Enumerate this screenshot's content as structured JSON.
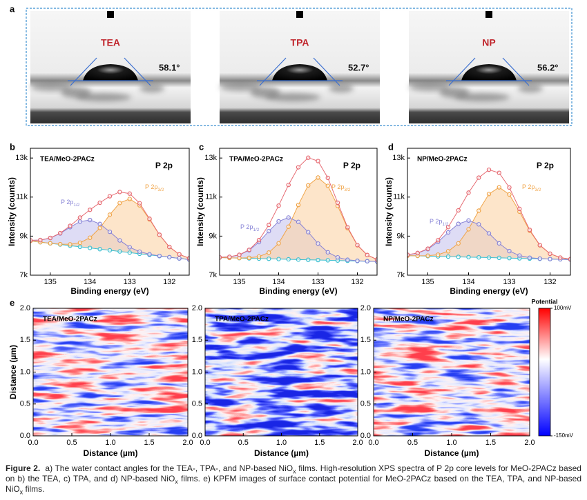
{
  "contact_angle": {
    "label": "a",
    "samples": [
      {
        "name": "TEA",
        "angle": "58.1°"
      },
      {
        "name": "TPA",
        "angle": "52.7°"
      },
      {
        "name": "NP",
        "angle": "56.2°"
      }
    ]
  },
  "chart_data": [
    {
      "type": "line",
      "panel": "b",
      "title": "TEA/MeO-2PACz",
      "annotation": "P 2p",
      "xlabel": "Binding energy (eV)",
      "ylabel": "Intensity (counts)",
      "x": [
        135.5,
        135.25,
        135,
        134.75,
        134.5,
        134.25,
        134,
        133.75,
        133.5,
        133.25,
        133,
        132.75,
        132.5,
        132.25,
        132,
        131.75,
        131.5
      ],
      "xlim": [
        135.5,
        131.5
      ],
      "xticks": [
        135,
        134,
        133,
        132
      ],
      "ylim": [
        7000,
        13500
      ],
      "yticks": [
        {
          "value": 7000,
          "label": "7k"
        },
        {
          "value": 9000,
          "label": "9k"
        },
        {
          "value": 11000,
          "label": "11k"
        },
        {
          "value": 13000,
          "label": "13k"
        }
      ],
      "series": [
        {
          "color": "#e66a72",
          "values": [
            8785,
            8799,
            8908,
            9154,
            9526,
            9951,
            10349,
            10710,
            11043,
            11262,
            11179,
            10686,
            9893,
            9073,
            8446,
            8067,
            7867
          ]
        },
        {
          "name": "P 2p",
          "sub": "1/2",
          "color": "#8783d6",
          "fill": "#c8c4ee",
          "values": [
            8785,
            8799,
            8904,
            9137,
            9459,
            9743,
            9824,
            9624,
            9222,
            8781,
            8429,
            8205,
            8072,
            7987,
            7921,
            7859,
            7800
          ]
        },
        {
          "name": "P 2p",
          "sub": "3/2",
          "color": "#f0a448",
          "fill": "#fbd3a6",
          "values": [
            8750,
            8691,
            8635,
            8589,
            8579,
            8661,
            8919,
            9420,
            10096,
            10697,
            10906,
            10578,
            9858,
            9064,
            8444,
            8067,
            7867
          ]
        },
        {
          "color": "#3cbfd0",
          "values": [
            8750,
            8691,
            8631,
            8572,
            8512,
            8453,
            8394,
            8334,
            8275,
            8216,
            8156,
            8097,
            8037,
            7978,
            7919,
            7859,
            7800
          ]
        }
      ]
    },
    {
      "type": "line",
      "panel": "c",
      "title": "TPA/MeO-2PACz",
      "annotation": "P 2p",
      "xlabel": "Binding energy (eV)",
      "ylabel": "Intensity (counts)",
      "x": [
        135.5,
        135.25,
        135,
        134.75,
        134.5,
        134.25,
        134,
        133.75,
        133.5,
        133.25,
        133,
        132.75,
        132.5,
        132.25,
        132,
        131.75,
        131.5
      ],
      "xlim": [
        135.5,
        131.5
      ],
      "xticks": [
        135,
        134,
        133,
        132
      ],
      "ylim": [
        7000,
        13500
      ],
      "yticks": [
        {
          "value": 7000,
          "label": "7k"
        },
        {
          "value": 9000,
          "label": "9k"
        },
        {
          "value": 11000,
          "label": "11k"
        },
        {
          "value": 13000,
          "label": "13k"
        }
      ],
      "series": [
        {
          "color": "#e66a72",
          "values": [
            7913,
            7940,
            8042,
            8299,
            8797,
            9574,
            10562,
            11622,
            12527,
            13016,
            12845,
            11983,
            10709,
            9459,
            8545,
            8035,
            7802
          ]
        },
        {
          "name": "P 2p",
          "sub": "1/2",
          "color": "#8783d6",
          "fill": "#c8c4ee",
          "values": [
            7913,
            7940,
            8037,
            8272,
            8695,
            9255,
            9755,
            9953,
            9730,
            9205,
            8620,
            8172,
            7912,
            7790,
            7738,
            7716,
            7700
          ]
        },
        {
          "name": "P 2p",
          "sub": "3/2",
          "color": "#f0a448",
          "fill": "#fbd3a6",
          "values": [
            7900,
            7888,
            7880,
            7890,
            7952,
            8157,
            8632,
            9482,
            10597,
            11599,
            12000,
            11574,
            10547,
            9407,
            8532,
            8032,
            7802
          ]
        },
        {
          "color": "#3cbfd0",
          "values": [
            7900,
            7888,
            7875,
            7863,
            7850,
            7838,
            7825,
            7813,
            7800,
            7788,
            7775,
            7763,
            7750,
            7738,
            7725,
            7713,
            7700
          ]
        }
      ]
    },
    {
      "type": "line",
      "panel": "d",
      "title": "NP/MeO-2PACz",
      "annotation": "P 2p",
      "xlabel": "Binding energy (eV)",
      "ylabel": "Intensity (counts)",
      "x": [
        135.5,
        135.25,
        135,
        134.75,
        134.5,
        134.25,
        134,
        133.75,
        133.5,
        133.25,
        133,
        132.75,
        132.5,
        132.25,
        132,
        131.75,
        131.5
      ],
      "xlim": [
        135.5,
        131.5
      ],
      "xticks": [
        135,
        134,
        133,
        132
      ],
      "ylim": [
        7000,
        13500
      ],
      "yticks": [
        {
          "value": 7000,
          "label": "7k"
        },
        {
          "value": 9000,
          "label": "9k"
        },
        {
          "value": 11000,
          "label": "11k"
        },
        {
          "value": 13000,
          "label": "13k"
        }
      ],
      "series": [
        {
          "color": "#e66a72",
          "values": [
            8045,
            8135,
            8356,
            8791,
            9464,
            10319,
            11227,
            11995,
            12399,
            12241,
            11491,
            10396,
            9322,
            8540,
            8100,
            7900,
            7823
          ]
        },
        {
          "name": "P 2p",
          "sub": "1/2",
          "color": "#8783d6",
          "fill": "#c8c4ee",
          "values": [
            8045,
            8130,
            8333,
            8704,
            9191,
            9629,
            9800,
            9604,
            9141,
            8629,
            8233,
            8005,
            7895,
            7850,
            7827,
            7813,
            7800
          ]
        },
        {
          "name": "P 2p",
          "sub": "3/2",
          "color": "#f0a448",
          "fill": "#fbd3a6",
          "values": [
            8000,
            7993,
            7998,
            8050,
            8223,
            8628,
            9352,
            10304,
            11158,
            11500,
            11133,
            10254,
            9277,
            8528,
            8098,
            7900,
            7823
          ]
        },
        {
          "color": "#3cbfd0",
          "values": [
            8000,
            7988,
            7975,
            7963,
            7950,
            7938,
            7925,
            7913,
            7900,
            7888,
            7875,
            7863,
            7850,
            7838,
            7825,
            7813,
            7800
          ]
        }
      ]
    },
    {
      "type": "heatmap",
      "panel": "e",
      "title": "TEA/MeO-2PACz",
      "xlabel": "Distance (µm)",
      "ylabel": "Distance (µm)",
      "xlim": [
        0,
        2
      ],
      "xticks": [
        {
          "value": 0,
          "label": "0.0"
        },
        0.5,
        {
          "value": 1,
          "label": "1.0"
        },
        1.5,
        {
          "value": 2,
          "label": "2.0"
        }
      ],
      "ylim": [
        0,
        2
      ],
      "yticks": [
        {
          "value": 0,
          "label": "0.0"
        },
        0.5,
        {
          "value": 1,
          "label": "1.0"
        },
        1.5,
        {
          "value": 2,
          "label": "2.0"
        }
      ]
    },
    {
      "type": "heatmap",
      "title": "TPA/MeO-2PACz",
      "xlabel": "Distance (µm)",
      "xlim": [
        0,
        2
      ],
      "xticks": [
        {
          "value": 0,
          "label": "0.0"
        },
        0.5,
        {
          "value": 1,
          "label": "1.0"
        },
        1.5,
        {
          "value": 2,
          "label": "2.0"
        }
      ],
      "ylim": [
        0,
        2
      ],
      "yticks": [
        {
          "value": 0,
          "label": "0.0"
        },
        0.5,
        {
          "value": 1,
          "label": "1.0"
        },
        1.5,
        {
          "value": 2,
          "label": "2.0"
        }
      ]
    },
    {
      "type": "heatmap",
      "title": "NP/MeO-2PACz",
      "xlabel": "Distance (µm)",
      "xlim": [
        0,
        2
      ],
      "xticks": [
        {
          "value": 0,
          "label": "0.0"
        },
        0.5,
        {
          "value": 1,
          "label": "1.0"
        },
        1.5,
        {
          "value": 2,
          "label": "2.0"
        }
      ],
      "ylim": [
        0,
        2
      ],
      "yticks": [
        {
          "value": 0,
          "label": "0.0"
        },
        0.5,
        {
          "value": 1,
          "label": "1.0"
        },
        1.5,
        {
          "value": 2,
          "label": "2.0"
        }
      ],
      "colorbar": {
        "title": "Potential",
        "lim": [
          -150,
          100
        ],
        "ticks": [
          {
            "value": 100,
            "label": "100mV"
          },
          {
            "value": -150,
            "label": "-150mV"
          }
        ]
      }
    }
  ],
  "caption": [
    {
      "text": "Figure 2.",
      "bold": true
    },
    {
      "text": "  a) The water contact angles for the TEA-, TPA-, and NP-based NiO"
    },
    {
      "text": "x",
      "sub": true
    },
    {
      "text": " films. High-resolution XPS spectra of P 2p core levels for MeO-2PACz based on b) the TEA, c) TPA, and d) NP-based NiO"
    },
    {
      "text": "x",
      "sub": true
    },
    {
      "text": " films. e) KPFM images of surface contact potential for MeO-2PACz based on the TEA, TPA, and NP-based NiO"
    },
    {
      "text": "x",
      "sub": true
    },
    {
      "text": " films."
    }
  ]
}
